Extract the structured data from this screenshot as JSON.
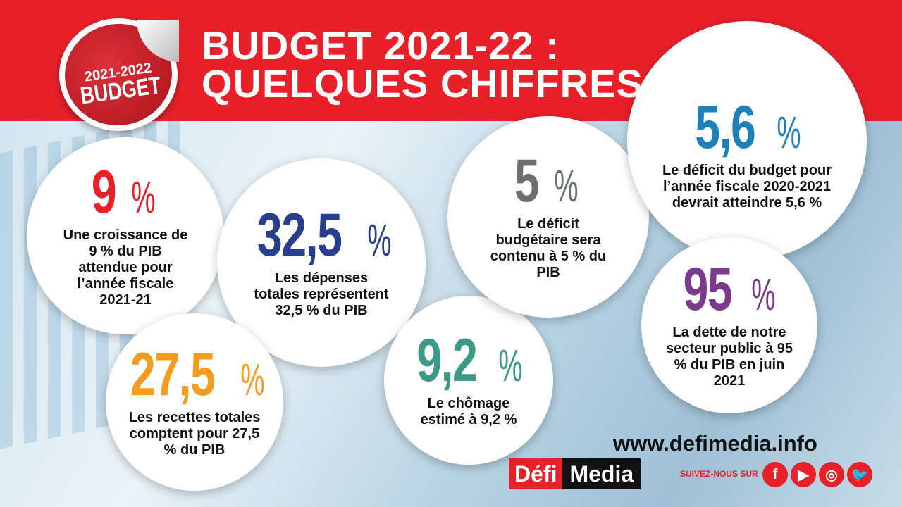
{
  "header": {
    "title_line1": "BUDGET 2021-22 :",
    "title_line2": "QUELQUES CHIFFRES"
  },
  "sticker": {
    "years": "2021-2022",
    "label": "BUDGET"
  },
  "stats": [
    {
      "value": "9",
      "unit": "%",
      "color": "#e8202a",
      "text": "Une croissance de 9 % du PIB attendue pour l’année fiscale 2021-21"
    },
    {
      "value": "32,5",
      "unit": "%",
      "color": "#283e8f",
      "text": "Les dépenses totales représentent 32,5 % du PIB"
    },
    {
      "value": "27,5",
      "unit": "%",
      "color": "#f39c1e",
      "text": "Les recettes totales comptent pour 27,5 % du PIB"
    },
    {
      "value": "9,2",
      "unit": "%",
      "color": "#3a9a8a",
      "text": "Le chômage estimé à 9,2 %"
    },
    {
      "value": "5",
      "unit": "%",
      "color": "#6d6e70",
      "text": "Le déficit budgétaire sera contenu à 5 % du PIB"
    },
    {
      "value": "5,6",
      "unit": "%",
      "color": "#1f7fb8",
      "text": "Le déficit du budget pour l’année fiscale 2020-2021 devrait atteindre 5,6 %"
    },
    {
      "value": "95",
      "unit": "%",
      "color": "#7a3b8c",
      "text": "La dette de notre secteur public à 95 % du PIB en juin 2021"
    }
  ],
  "footer": {
    "website": "www.defimedia.info",
    "logo_part1": "Défi",
    "logo_part2": "Media",
    "follow": "SUIVEZ-NOUS SUR",
    "social": [
      {
        "icon": "facebook-icon",
        "glyph": "f"
      },
      {
        "icon": "youtube-icon",
        "glyph": "▶"
      },
      {
        "icon": "instagram-icon",
        "glyph": "◎"
      },
      {
        "icon": "twitter-icon",
        "glyph": "🐦"
      }
    ]
  }
}
